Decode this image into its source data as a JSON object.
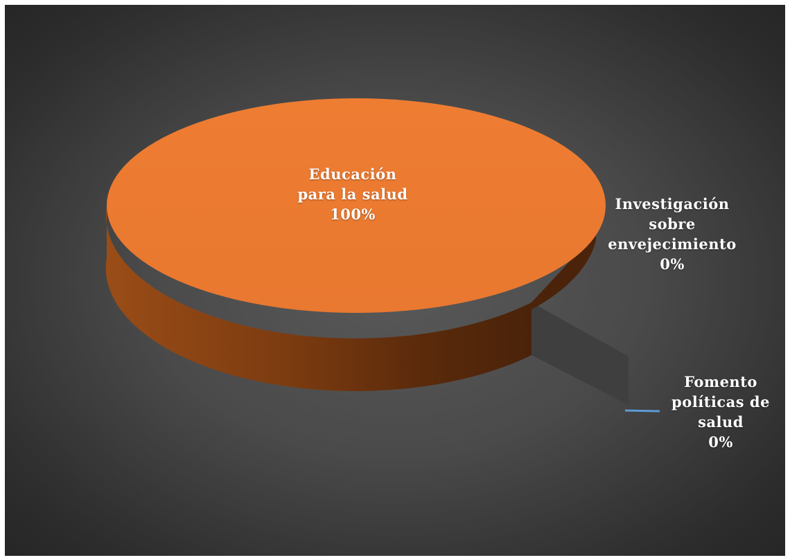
{
  "chart_data": {
    "type": "pie",
    "style": "3d",
    "categories": [
      "Educación para la salud",
      "Investigación sobre envejecimiento",
      "Fomento políticas de salud"
    ],
    "values": [
      100,
      0,
      0
    ],
    "colors": [
      "#ED7D31",
      "#A5A5A5",
      "#5B9BD5"
    ],
    "labels": [
      {
        "lines": [
          "Educación",
          "para la salud"
        ],
        "pct": "100%"
      },
      {
        "lines": [
          "Investigación",
          "sobre",
          "envejecimiento"
        ],
        "pct": "0%"
      },
      {
        "lines": [
          "Fomento",
          "políticas de",
          "salud"
        ],
        "pct": "0%"
      }
    ],
    "background": "#4a4a4a"
  }
}
